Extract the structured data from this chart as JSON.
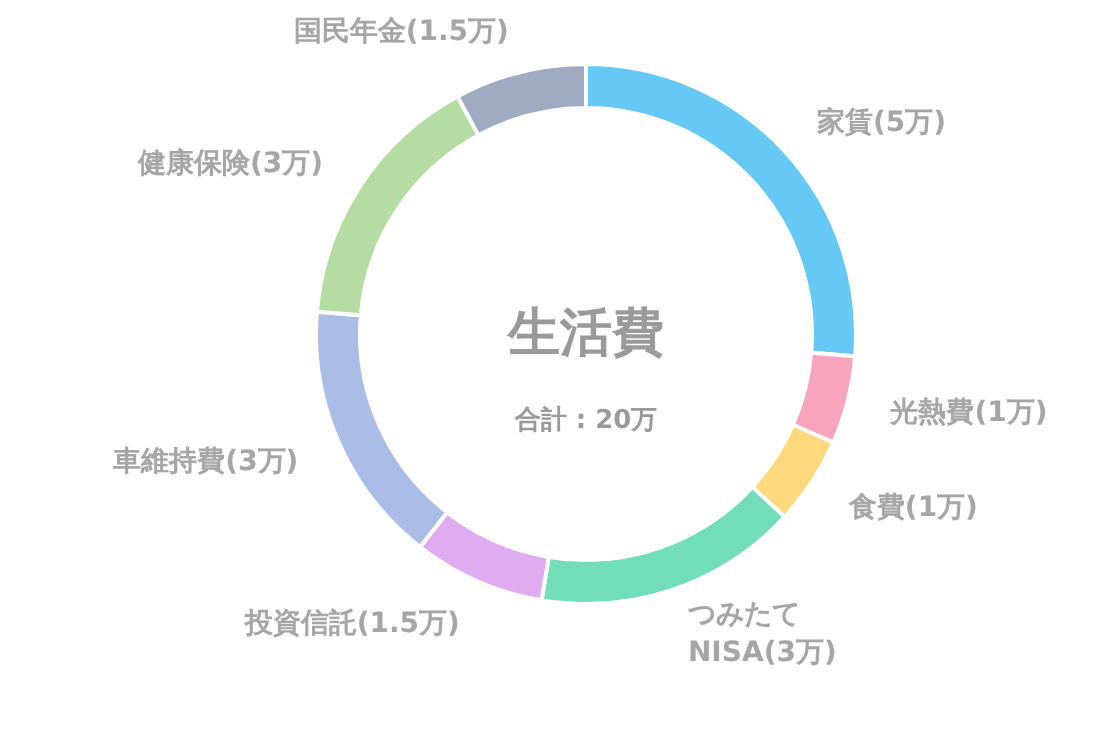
{
  "chart_data": {
    "type": "donut",
    "title": "生活費",
    "subtitle": "合計 : 20万",
    "categories": [
      "家賃(5万)",
      "光熱費(1万)",
      "食費(1万)",
      "つみたて\nNISA(3万)",
      "投資信託(1.5万)",
      "車維持費(3万)",
      "健康保険(3万)",
      "国民年金(1.5万)"
    ],
    "values": [
      5,
      1,
      1,
      3,
      1.5,
      3,
      3,
      1.5
    ],
    "colors": [
      "#66c8f4",
      "#f9a3bd",
      "#fdd87c",
      "#72ddb9",
      "#dfabf1",
      "#aabde6",
      "#b5dca2",
      "#9eabc0"
    ]
  }
}
